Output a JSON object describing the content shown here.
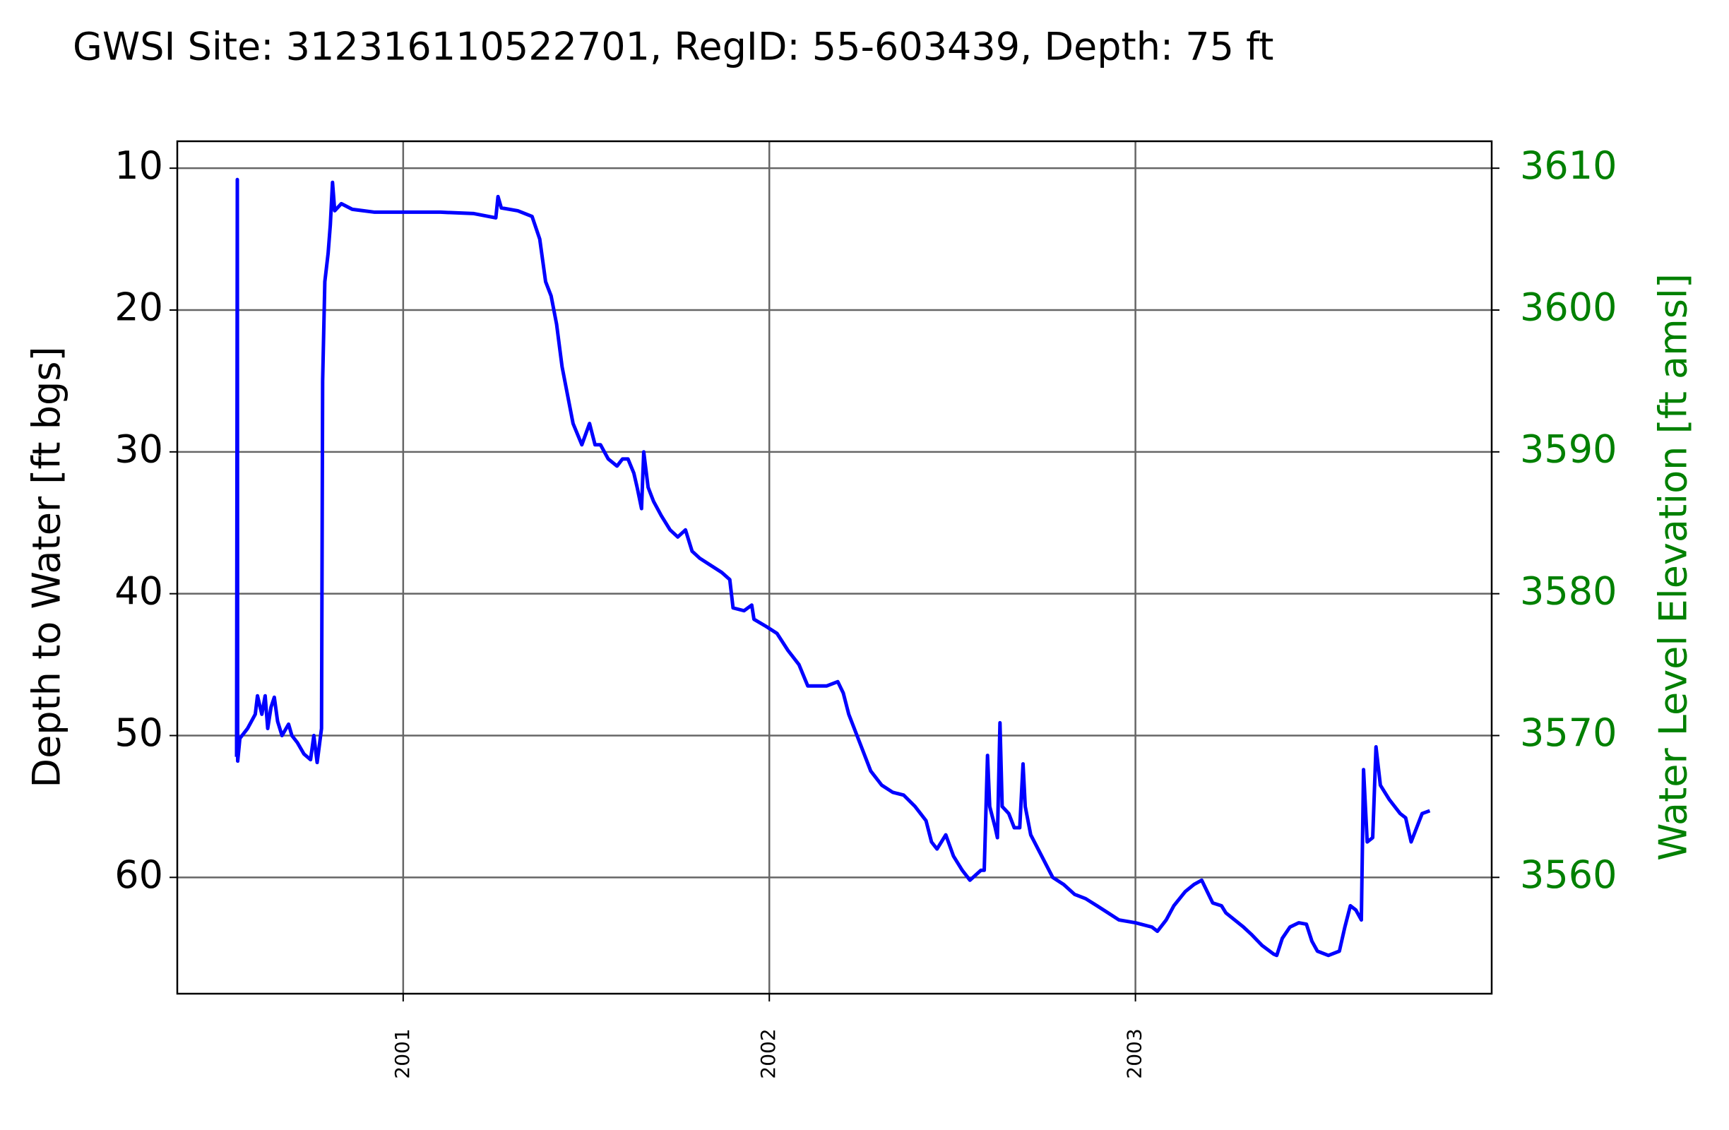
{
  "chart_data": {
    "type": "line",
    "title": "GWSI Site: 312316110522701, RegID: 55-603439, Depth: 75 ft",
    "y_label": "Depth to Water [ft bgs]",
    "y2_label": "Water Level Elevation [ft amsl]",
    "color": "#0000ff",
    "y2_color": "#008000",
    "grid": true,
    "xlim": [
      2000.383,
      2003.973
    ],
    "xticks": [
      2001,
      2002,
      2003
    ],
    "ylim": [
      68.2,
      8.1
    ],
    "yticks": [
      10,
      20,
      30,
      40,
      50,
      60
    ],
    "y2lim": [
      3551.8,
      3611.9
    ],
    "y2ticks": [
      3560,
      3570,
      3580,
      3590,
      3600,
      3610
    ],
    "x": [
      2000.545,
      2000.547,
      2000.548,
      2000.554,
      2000.575,
      2000.596,
      2000.602,
      2000.614,
      2000.623,
      2000.63,
      2000.639,
      2000.648,
      2000.657,
      2000.669,
      2000.687,
      2000.696,
      2000.711,
      2000.729,
      2000.747,
      2000.756,
      2000.765,
      2000.777,
      2000.78,
      2000.786,
      2000.795,
      2000.801,
      2000.807,
      2000.813,
      2000.831,
      2000.861,
      2000.922,
      2001.0,
      2001.102,
      2001.193,
      2001.253,
      2001.259,
      2001.268,
      2001.313,
      2001.352,
      2001.373,
      2001.389,
      2001.404,
      2001.419,
      2001.434,
      2001.449,
      2001.464,
      2001.488,
      2001.509,
      2001.524,
      2001.539,
      2001.56,
      2001.584,
      2001.599,
      2001.614,
      2001.63,
      2001.639,
      2001.651,
      2001.657,
      2001.669,
      2001.684,
      2001.705,
      2001.729,
      2001.75,
      2001.771,
      2001.789,
      2001.81,
      2001.84,
      2001.87,
      2001.892,
      2001.901,
      2001.931,
      2001.952,
      2001.958,
      2001.991,
      2002.021,
      2002.051,
      2002.081,
      2002.105,
      2002.127,
      2002.157,
      2002.187,
      2002.202,
      2002.217,
      2002.247,
      2002.277,
      2002.307,
      2002.337,
      2002.367,
      2002.398,
      2002.413,
      2002.428,
      2002.443,
      2002.458,
      2002.482,
      2002.503,
      2002.527,
      2002.548,
      2002.578,
      2002.587,
      2002.596,
      2002.602,
      2002.617,
      2002.623,
      2002.63,
      2002.636,
      2002.654,
      2002.669,
      2002.684,
      2002.693,
      2002.699,
      2002.714,
      2002.744,
      2002.774,
      2002.804,
      2002.834,
      2002.864,
      2002.895,
      2002.925,
      2002.955,
      2003.0,
      2003.045,
      2003.06,
      2003.084,
      2003.105,
      2003.136,
      2003.16,
      2003.181,
      2003.196,
      2003.211,
      2003.235,
      2003.247,
      2003.271,
      2003.295,
      2003.316,
      2003.346,
      2003.377,
      2003.386,
      2003.401,
      2003.422,
      2003.446,
      2003.467,
      2003.482,
      2003.497,
      2003.527,
      2003.557,
      2003.572,
      2003.587,
      2003.602,
      2003.617,
      2003.623,
      2003.633,
      2003.648,
      2003.657,
      2003.669,
      2003.693,
      2003.723,
      2003.738,
      2003.753,
      2003.768,
      2003.783,
      2003.804
    ],
    "values": [
      51.5,
      10.8,
      51.8,
      50.2,
      49.5,
      48.5,
      47.2,
      48.5,
      47.2,
      49.5,
      48.0,
      47.3,
      49.0,
      50.0,
      49.2,
      50.0,
      50.5,
      51.3,
      51.7,
      50.0,
      51.9,
      49.5,
      25,
      18,
      16,
      14,
      11,
      13,
      12.5,
      12.9,
      13.1,
      13.1,
      13.1,
      13.2,
      13.5,
      12.0,
      12.8,
      13.0,
      13.4,
      15,
      18,
      19,
      21,
      24,
      26,
      28,
      29.5,
      28,
      29.5,
      29.5,
      30.5,
      31,
      30.5,
      30.5,
      31.5,
      32.5,
      34,
      30,
      32.5,
      33.5,
      34.5,
      35.5,
      36,
      35.5,
      37,
      37.5,
      38,
      38.5,
      39,
      41,
      41.2,
      40.8,
      41.8,
      42.3,
      42.8,
      44,
      45,
      46.5,
      46.5,
      46.5,
      46.2,
      47,
      48.5,
      50.5,
      52.5,
      53.5,
      54,
      54.2,
      55,
      55.5,
      56,
      57.5,
      58,
      57,
      58.5,
      59.5,
      60.2,
      59.5,
      59.5,
      51.4,
      55,
      56.5,
      57.2,
      49.1,
      55,
      55.5,
      56.5,
      56.5,
      52,
      55,
      57,
      58.5,
      60,
      60.5,
      61.2,
      61.5,
      62,
      62.5,
      63,
      63.2,
      63.5,
      63.8,
      63,
      62,
      61,
      60.5,
      60.2,
      61,
      61.8,
      62,
      62.5,
      63,
      63.5,
      64,
      64.8,
      65.4,
      65.5,
      64.3,
      63.5,
      63.2,
      63.3,
      64.5,
      65.2,
      65.5,
      65.2,
      63.5,
      62,
      62.3,
      63,
      52.4,
      57.5,
      57.2,
      50.8,
      53.5,
      54.5,
      55.5,
      55.8,
      57.5,
      56.5,
      55.5,
      55.3
    ]
  }
}
